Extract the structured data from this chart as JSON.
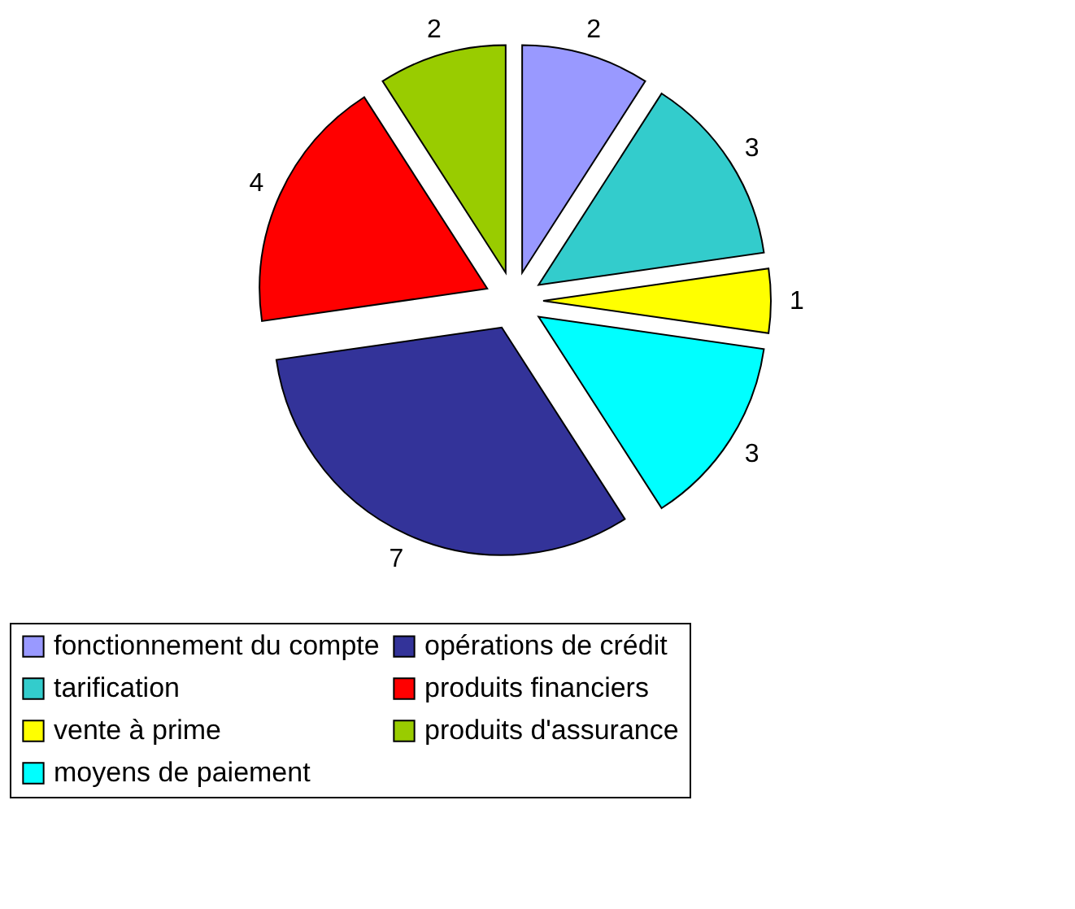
{
  "chart_data": {
    "type": "pie",
    "categories": [
      "fonctionnement du compte",
      "tarification",
      "vente à prime",
      "moyens de paiement",
      "opérations de crédit",
      "produits financiers",
      "produits d'assurance"
    ],
    "values": [
      2,
      3,
      1,
      3,
      7,
      4,
      2
    ],
    "colors": [
      "#9999ff",
      "#33cccc",
      "#ffff00",
      "#00ffff",
      "#333399",
      "#ff0000",
      "#99cc00"
    ],
    "data_labels": true,
    "legend": "bottom"
  }
}
